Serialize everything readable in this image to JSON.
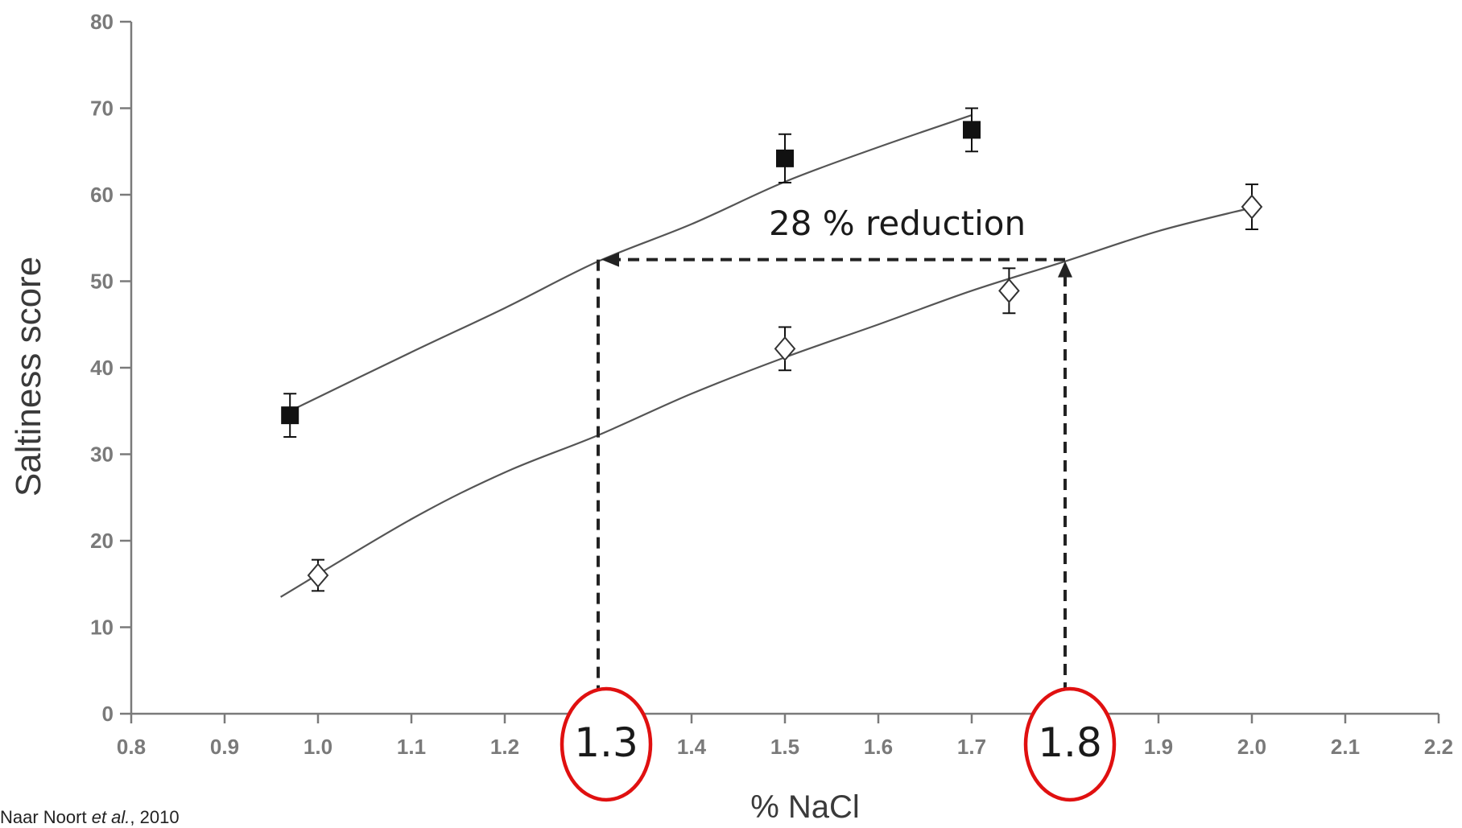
{
  "chart_data": {
    "type": "scatter",
    "xlabel": "% NaCl",
    "ylabel": "Saltiness score",
    "xlim": [
      0.8,
      2.2
    ],
    "ylim": [
      0,
      80
    ],
    "x_ticks": [
      "0.8",
      "0.9",
      "1.0",
      "1.1",
      "1.2",
      "1.3",
      "1.4",
      "1.5",
      "1.6",
      "1.7",
      "1.8",
      "1.9",
      "2.0",
      "2.1",
      "2.2"
    ],
    "y_ticks": [
      "0",
      "10",
      "20",
      "30",
      "40",
      "50",
      "60",
      "70",
      "80"
    ],
    "grid": false,
    "series": [
      {
        "marker": "filled-square",
        "color": "#1a1a1a",
        "points": [
          {
            "x": 0.97,
            "y": 34.5,
            "err": 2.5
          },
          {
            "x": 1.5,
            "y": 64.2,
            "err": 2.8
          },
          {
            "x": 1.7,
            "y": 67.5,
            "err": 2.5
          }
        ],
        "fit": [
          [
            0.97,
            35
          ],
          [
            1.1,
            41.8
          ],
          [
            1.2,
            46.9
          ],
          [
            1.3,
            52.3
          ],
          [
            1.4,
            56.6
          ],
          [
            1.5,
            61.5
          ],
          [
            1.6,
            65.5
          ],
          [
            1.7,
            69.2
          ]
        ]
      },
      {
        "marker": "open-diamond",
        "color": "#444444",
        "points": [
          {
            "x": 1.0,
            "y": 16.0,
            "err": 1.8
          },
          {
            "x": 1.5,
            "y": 42.2,
            "err": 2.5
          },
          {
            "x": 1.74,
            "y": 48.9,
            "err": 2.6
          },
          {
            "x": 2.0,
            "y": 58.6,
            "err": 2.6
          }
        ],
        "fit": [
          [
            0.96,
            13.5
          ],
          [
            1.1,
            22.5
          ],
          [
            1.2,
            27.9
          ],
          [
            1.3,
            32.2
          ],
          [
            1.4,
            37.0
          ],
          [
            1.5,
            41.2
          ],
          [
            1.6,
            45.0
          ],
          [
            1.7,
            48.9
          ],
          [
            1.8,
            52.3
          ],
          [
            1.9,
            55.8
          ],
          [
            2.0,
            58.5
          ]
        ]
      }
    ],
    "annotations": {
      "reduction_text": "28 %  reduction",
      "left_value": "1.3",
      "right_value": "1.8",
      "arrow_y": 52.5,
      "left_x": 1.3,
      "right_x": 1.8
    }
  },
  "citation": {
    "prefix": "Naar Noort ",
    "etal": "et al.",
    "suffix": ", 2010"
  },
  "colors": {
    "axis": "#7a7a7a",
    "curve": "#555555",
    "marker": "#111111",
    "circle": "#e01010",
    "dash": "#222222"
  }
}
